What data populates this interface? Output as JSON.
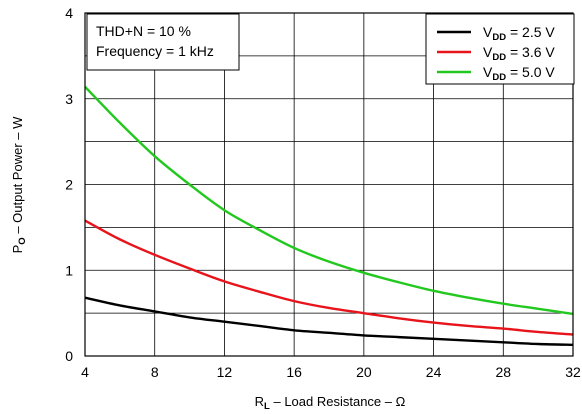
{
  "chart_data": {
    "type": "line",
    "xlabel_main": "R",
    "xlabel_sub": "L",
    "xlabel_rest": " – Load Resistance – Ω",
    "ylabel_main": "P",
    "ylabel_sub": "O",
    "ylabel_rest": " – Output Power – W",
    "xlim": [
      4,
      32
    ],
    "ylim": [
      0,
      4
    ],
    "x_ticks": [
      4,
      8,
      12,
      16,
      20,
      24,
      28,
      32
    ],
    "y_ticks": [
      0,
      1,
      2,
      3,
      4
    ],
    "x_minor_gridlines": [],
    "y_gridlines": [
      0.5,
      1,
      1.5,
      2,
      2.5,
      3,
      3.5
    ],
    "grid": true,
    "annotation": [
      "THD+N = 10 %",
      "Frequency = 1 kHz"
    ],
    "legend_position": "top-right",
    "series": [
      {
        "name": "V_DD = 2.5 V",
        "name_main": "V",
        "name_sub": "DD",
        "name_rest": " = 2.5 V",
        "color": "#000000",
        "x": [
          4,
          6,
          8,
          10,
          12,
          14,
          16,
          18,
          20,
          22,
          24,
          26,
          28,
          30,
          32
        ],
        "y": [
          0.68,
          0.59,
          0.52,
          0.45,
          0.4,
          0.35,
          0.3,
          0.27,
          0.24,
          0.22,
          0.2,
          0.18,
          0.16,
          0.14,
          0.13
        ]
      },
      {
        "name": "V_DD = 3.6 V",
        "name_main": "V",
        "name_sub": "DD",
        "name_rest": " = 3.6 V",
        "color": "#e8141b",
        "x": [
          4,
          6,
          8,
          10,
          12,
          14,
          16,
          18,
          20,
          22,
          24,
          26,
          28,
          30,
          32
        ],
        "y": [
          1.58,
          1.36,
          1.18,
          1.02,
          0.87,
          0.75,
          0.64,
          0.56,
          0.5,
          0.44,
          0.39,
          0.35,
          0.32,
          0.28,
          0.25
        ]
      },
      {
        "name": "V_DD = 5.0 V",
        "name_main": "V",
        "name_sub": "DD",
        "name_rest": " = 5.0 V",
        "color": "#22c81e",
        "x": [
          4,
          6,
          8,
          10,
          12,
          14,
          16,
          18,
          20,
          22,
          24,
          26,
          28,
          30,
          32
        ],
        "y": [
          3.14,
          2.72,
          2.33,
          2.0,
          1.7,
          1.47,
          1.26,
          1.1,
          0.97,
          0.86,
          0.76,
          0.68,
          0.61,
          0.55,
          0.49
        ]
      }
    ]
  }
}
